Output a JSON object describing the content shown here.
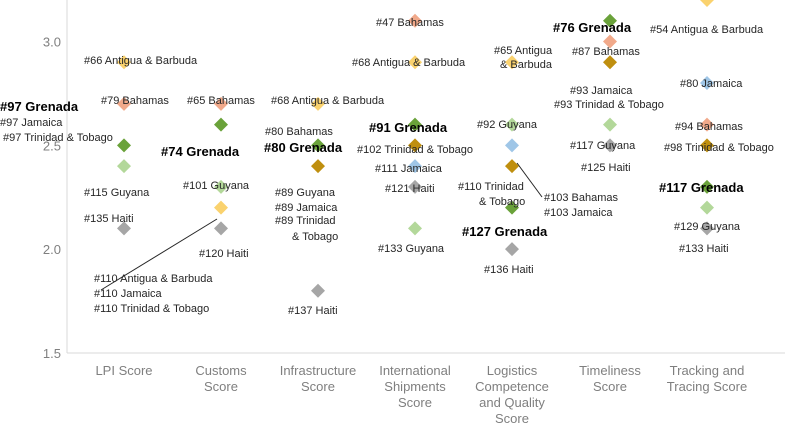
{
  "chart_data": {
    "type": "scatter",
    "title": "",
    "xlabel": "",
    "ylabel": "",
    "ylim": [
      1.5,
      3.2
    ],
    "y_ticks": [
      "1.5",
      "2.0",
      "2.5",
      "3.0"
    ],
    "categories": [
      [
        "LPI Score"
      ],
      [
        "Customs",
        "Score"
      ],
      [
        "Infrastructure",
        "Score"
      ],
      [
        "International",
        "Shipments",
        "Score"
      ],
      [
        "Logistics",
        "Competence",
        "and Quality",
        "Score"
      ],
      [
        "Timeliness",
        "Score"
      ],
      [
        "Tracking and",
        "Tracing Score"
      ]
    ],
    "colors": {
      "Grenada": "#6aa23a",
      "Antigua & Barbuda": "#fad26e",
      "Bahamas": "#f1a98a",
      "Jamaica": "#9fc6e7",
      "Trinidad & Tobago": "#bf8f0f",
      "Guyana": "#b3d89a",
      "Haiti": "#a6a6a6",
      "Jamaica+Trinidad & Tobago": "#bf8f0f",
      "Antigua+Jamaica+Trinidad": "#fad26e",
      "Bahamas+Jamaica": "#9fc6e7"
    },
    "points": [
      {
        "cat": 0,
        "y": 2.9,
        "group": "Antigua & Barbuda"
      },
      {
        "cat": 0,
        "y": 2.7,
        "group": "Bahamas"
      },
      {
        "cat": 0,
        "y": 2.5,
        "group": "Grenada"
      },
      {
        "cat": 0,
        "y": 2.4,
        "group": "Guyana"
      },
      {
        "cat": 0,
        "y": 2.1,
        "group": "Haiti"
      },
      {
        "cat": 1,
        "y": 2.7,
        "group": "Bahamas"
      },
      {
        "cat": 1,
        "y": 2.6,
        "group": "Grenada"
      },
      {
        "cat": 1,
        "y": 2.3,
        "group": "Guyana"
      },
      {
        "cat": 1,
        "y": 2.2,
        "group": "Antigua+Jamaica+Trinidad"
      },
      {
        "cat": 1,
        "y": 2.1,
        "group": "Haiti"
      },
      {
        "cat": 2,
        "y": 2.7,
        "group": "Antigua & Barbuda"
      },
      {
        "cat": 2,
        "y": 2.5,
        "group": "Grenada"
      },
      {
        "cat": 2,
        "y": 2.4,
        "group": "Trinidad & Tobago"
      },
      {
        "cat": 2,
        "y": 1.8,
        "group": "Haiti"
      },
      {
        "cat": 3,
        "y": 3.1,
        "group": "Bahamas"
      },
      {
        "cat": 3,
        "y": 2.9,
        "group": "Antigua & Barbuda"
      },
      {
        "cat": 3,
        "y": 2.6,
        "group": "Grenada"
      },
      {
        "cat": 3,
        "y": 2.5,
        "group": "Trinidad & Tobago"
      },
      {
        "cat": 3,
        "y": 2.4,
        "group": "Jamaica"
      },
      {
        "cat": 3,
        "y": 2.3,
        "group": "Haiti"
      },
      {
        "cat": 3,
        "y": 2.1,
        "group": "Guyana"
      },
      {
        "cat": 4,
        "y": 2.9,
        "group": "Antigua & Barbuda"
      },
      {
        "cat": 4,
        "y": 2.6,
        "group": "Guyana"
      },
      {
        "cat": 4,
        "y": 2.5,
        "group": "Bahamas+Jamaica"
      },
      {
        "cat": 4,
        "y": 2.4,
        "group": "Trinidad & Tobago"
      },
      {
        "cat": 4,
        "y": 2.2,
        "group": "Grenada"
      },
      {
        "cat": 4,
        "y": 2.0,
        "group": "Haiti"
      },
      {
        "cat": 5,
        "y": 3.1,
        "group": "Grenada"
      },
      {
        "cat": 5,
        "y": 3.0,
        "group": "Bahamas"
      },
      {
        "cat": 5,
        "y": 2.9,
        "group": "Jamaica+Trinidad & Tobago"
      },
      {
        "cat": 5,
        "y": 2.6,
        "group": "Guyana"
      },
      {
        "cat": 5,
        "y": 2.5,
        "group": "Haiti"
      },
      {
        "cat": 6,
        "y": 3.2,
        "group": "Antigua & Barbuda"
      },
      {
        "cat": 6,
        "y": 2.8,
        "group": "Jamaica"
      },
      {
        "cat": 6,
        "y": 2.6,
        "group": "Bahamas"
      },
      {
        "cat": 6,
        "y": 2.5,
        "group": "Trinidad & Tobago"
      },
      {
        "cat": 6,
        "y": 2.3,
        "group": "Grenada"
      },
      {
        "cat": 6,
        "y": 2.2,
        "group": "Guyana"
      },
      {
        "cat": 6,
        "y": 2.1,
        "group": "Haiti"
      }
    ],
    "annotations": [
      {
        "text": "#66 Antigua & Barbuda",
        "bold": false
      },
      {
        "text": "#79 Bahamas",
        "bold": false
      },
      {
        "text": "#97 Grenada",
        "bold": true
      },
      {
        "text": "#97 Jamaica",
        "bold": false
      },
      {
        "text": "#97 Trinidad & Tobago",
        "bold": false
      },
      {
        "text": "#115 Guyana",
        "bold": false
      },
      {
        "text": "#135 Haiti",
        "bold": false
      },
      {
        "text": "#65 Bahamas",
        "bold": false
      },
      {
        "text": "#74 Grenada",
        "bold": true
      },
      {
        "text": "#101 Guyana",
        "bold": false
      },
      {
        "text": "#120 Haiti",
        "bold": false
      },
      {
        "text": "#110 Antigua & Barbuda",
        "bold": false
      },
      {
        "text": "#110 Jamaica",
        "bold": false
      },
      {
        "text": "#110 Trinidad & Tobago",
        "bold": false
      },
      {
        "text": "#68 Antigua & Barbuda",
        "bold": false
      },
      {
        "text": "#80 Bahamas",
        "bold": false
      },
      {
        "text": "#80 Grenada",
        "bold": true
      },
      {
        "text": "#89 Guyana",
        "bold": false
      },
      {
        "text": "#89 Jamaica",
        "bold": false
      },
      {
        "text": "#89 Trinidad",
        "bold": false
      },
      {
        "text": "& Tobago",
        "bold": false
      },
      {
        "text": "#137 Haiti",
        "bold": false
      },
      {
        "text": "#47 Bahamas",
        "bold": false
      },
      {
        "text": "#68 Antigua & Barbuda",
        "bold": false
      },
      {
        "text": "#91 Grenada",
        "bold": true
      },
      {
        "text": "#102 Trinidad & Tobago",
        "bold": false
      },
      {
        "text": "#111 Jamaica",
        "bold": false
      },
      {
        "text": "#121 Haiti",
        "bold": false
      },
      {
        "text": "#133 Guyana",
        "bold": false
      },
      {
        "text": "#65 Antigua",
        "bold": false
      },
      {
        "text": "& Barbuda",
        "bold": false
      },
      {
        "text": "#92 Guyana",
        "bold": false
      },
      {
        "text": "#110 Trinidad",
        "bold": false
      },
      {
        "text": "& Tobago",
        "bold": false
      },
      {
        "text": "#103 Bahamas",
        "bold": false
      },
      {
        "text": "#103 Jamaica",
        "bold": false
      },
      {
        "text": "#127 Grenada",
        "bold": true
      },
      {
        "text": "#136 Haiti",
        "bold": false
      },
      {
        "text": "#76 Grenada",
        "bold": true
      },
      {
        "text": "#87 Bahamas",
        "bold": false
      },
      {
        "text": "#93 Jamaica",
        "bold": false
      },
      {
        "text": "#93 Trinidad & Tobago",
        "bold": false
      },
      {
        "text": "#117 Guyana",
        "bold": false
      },
      {
        "text": "#125 Haiti",
        "bold": false
      },
      {
        "text": "#54 Antigua & Barbuda",
        "bold": false
      },
      {
        "text": "#80 Jamaica",
        "bold": false
      },
      {
        "text": "#94 Bahamas",
        "bold": false
      },
      {
        "text": "#98 Trinidad & Tobago",
        "bold": false
      },
      {
        "text": "#117 Grenada",
        "bold": true
      },
      {
        "text": "#129 Guyana",
        "bold": false
      },
      {
        "text": "#133 Haiti",
        "bold": false
      }
    ]
  }
}
